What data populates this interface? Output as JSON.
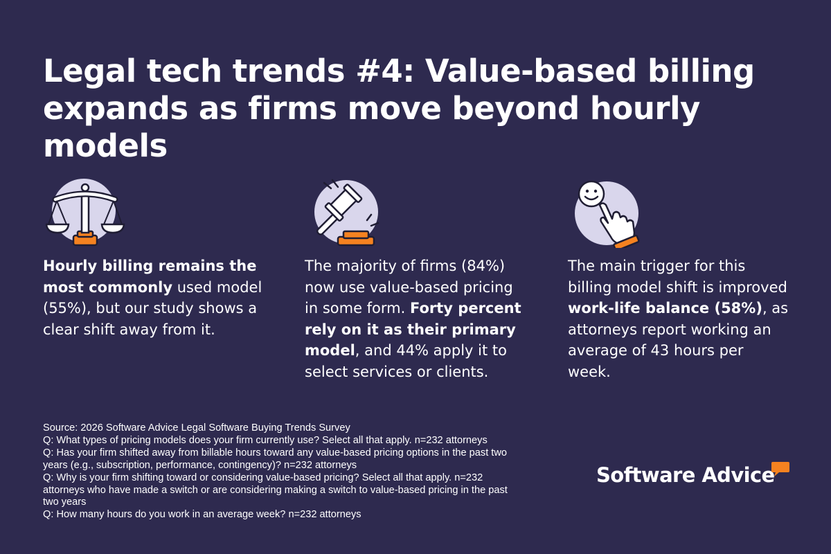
{
  "colors": {
    "background": "#2e2a4f",
    "text": "#ffffff",
    "accent": "#f58220",
    "icon_circle": "#d9d6ec"
  },
  "title": {
    "line1": "Legal tech trends #4: Value-based billing",
    "line2": "expands as firms move beyond hourly models"
  },
  "icons": {
    "scales": "scales-of-justice-icon",
    "gavel": "gavel-icon",
    "hand": "smiley-hand-icon"
  },
  "col1": {
    "l1": "Hourly billing remains the",
    "l2_bold": "most commonly",
    "l2_rest": " used model",
    "l3": "(55%), but our study shows a",
    "l4": "clear shift away from it."
  },
  "col2": {
    "l1": "The majority of firms (84%)",
    "l2": "now use value-based pricing",
    "l3_plain": "in some form. ",
    "l3_bold": "Forty percent",
    "l4": "rely on it as their primary",
    "l5_bold": "model",
    "l5_rest": ", and 44% apply it to",
    "l6": "select services or clients."
  },
  "col3": {
    "l1": "The main trigger for this",
    "l2": "billing model shift is improved",
    "l3_bold": "work-life balance (58%)",
    "l3_rest": ", as",
    "l4": "attorneys report working an",
    "l5": "average of 43 hours per",
    "l6": "week."
  },
  "footnotes": [
    "Source: 2026 Software Advice Legal Software Buying Trends Survey",
    "Q: What types of pricing models does your firm currently use? Select all that apply. n=232 attorneys",
    "Q: Has your firm shifted away from billable hours toward any value-based pricing options in the past two",
    "years (e.g., subscription, performance, contingency)? n=232 attorneys",
    "Q: Why is your firm shifting toward or considering value-based pricing? Select all that apply. n=232",
    "attorneys who have made a switch or are considering making a switch to value-based pricing in the past",
    "two years",
    "Q: How many hours do you work in an average week? n=232 attorneys"
  ],
  "logo": {
    "text": "Software Advice"
  }
}
